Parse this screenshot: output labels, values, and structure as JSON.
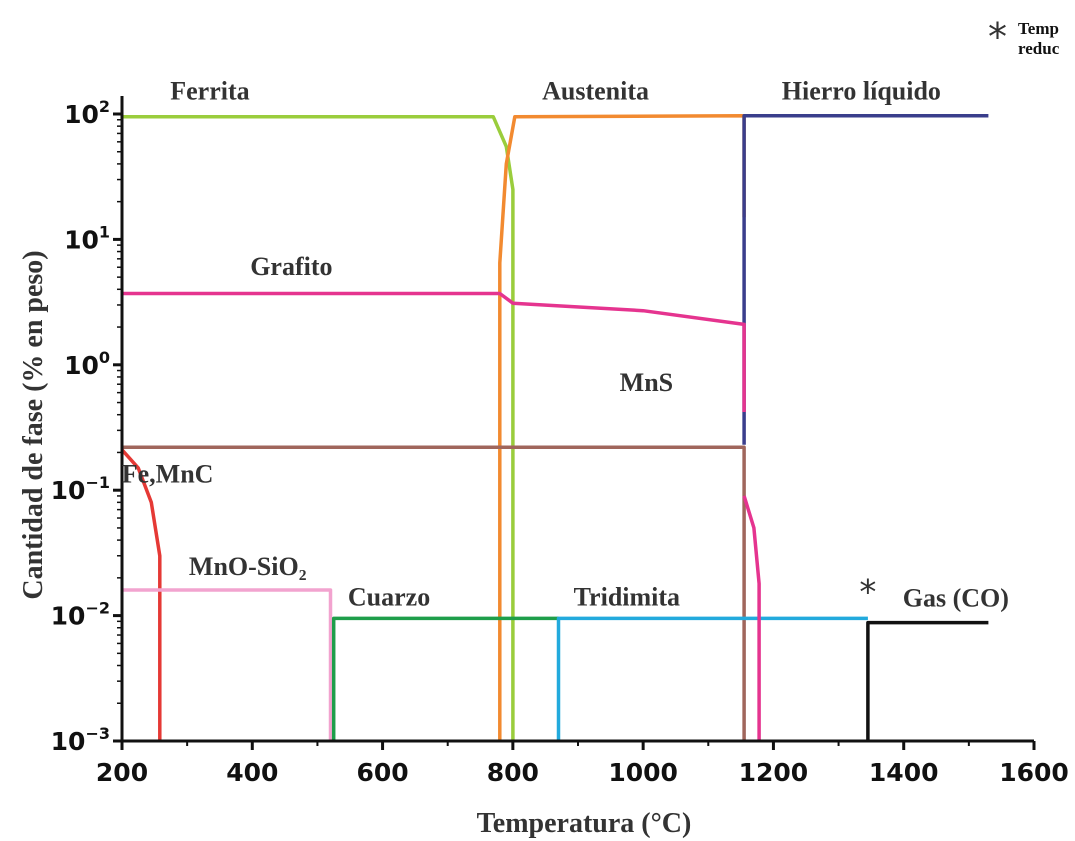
{
  "chart_data": {
    "type": "line",
    "title": "",
    "xlabel": "Temperatura (°C)",
    "ylabel": "Cantidad de fase  (% en peso)",
    "x_scale": "linear",
    "y_scale": "log",
    "xlim": [
      200,
      1600
    ],
    "ylim": [
      0.001,
      100
    ],
    "xticks": [
      "200",
      "400",
      "600",
      "800",
      "1000",
      "1200",
      "1400",
      "1600"
    ],
    "yticks": [
      {
        "base": "10",
        "exp": "2",
        "value": 100
      },
      {
        "base": "10",
        "exp": "1",
        "value": 10
      },
      {
        "base": "10",
        "exp": "0",
        "value": 1
      },
      {
        "base": "10",
        "exp": "−1",
        "value": 0.1
      },
      {
        "base": "10",
        "exp": "−2",
        "value": 0.01
      },
      {
        "base": "10",
        "exp": "−3",
        "value": 0.001
      }
    ],
    "grid": false,
    "note": {
      "symbol": "*",
      "text_lines": [
        "Temp",
        "reduc"
      ]
    },
    "series": [
      {
        "name": "Ferrita",
        "color": "#9ACD3C",
        "points": [
          [
            200,
            95
          ],
          [
            770,
            95
          ],
          [
            790,
            55
          ],
          [
            800,
            25
          ],
          [
            800,
            0.001
          ]
        ]
      },
      {
        "name": "Austenita",
        "color": "#F28A30",
        "points": [
          [
            780,
            0.001
          ],
          [
            780,
            6.5
          ],
          [
            790,
            40
          ],
          [
            803,
            95
          ],
          [
            1155,
            97
          ],
          [
            1155,
            15
          ]
        ]
      },
      {
        "name": "Hierro líquido",
        "color": "#3A3E8C",
        "points": [
          [
            1155,
            0.23
          ],
          [
            1155,
            15
          ],
          [
            1155,
            97
          ],
          [
            1530,
            97
          ]
        ]
      },
      {
        "name": "Grafito",
        "color": "#E5348F",
        "points": [
          [
            200,
            3.7
          ],
          [
            780,
            3.7
          ],
          [
            800,
            3.1
          ],
          [
            1000,
            2.7
          ],
          [
            1155,
            2.1
          ],
          [
            1155,
            0.42
          ]
        ]
      },
      {
        "name": "MnS",
        "color": "#A0665C",
        "points": [
          [
            200,
            0.22
          ],
          [
            1155,
            0.22
          ],
          [
            1155,
            0.001
          ]
        ]
      },
      {
        "name": "Fe,MnC",
        "color": "#E53935",
        "points": [
          [
            200,
            0.21
          ],
          [
            225,
            0.15
          ],
          [
            245,
            0.08
          ],
          [
            258,
            0.03
          ],
          [
            258,
            0.001
          ]
        ]
      },
      {
        "name": "MnO-SiO₂",
        "color": "#F2A3CF",
        "points": [
          [
            200,
            0.016
          ],
          [
            520,
            0.016
          ],
          [
            520,
            0.001
          ]
        ]
      },
      {
        "name": "Cuarzo",
        "color": "#1E9E4A",
        "points": [
          [
            525,
            0.001
          ],
          [
            525,
            0.0095
          ],
          [
            870,
            0.0095
          ]
        ]
      },
      {
        "name": "Tridimita",
        "color": "#22AADD",
        "points": [
          [
            870,
            0.001
          ],
          [
            870,
            0.0095
          ],
          [
            1345,
            0.0095
          ]
        ]
      },
      {
        "name": "Gas (CO)",
        "color": "#111111",
        "points": [
          [
            1345,
            0.001
          ],
          [
            1345,
            0.0088
          ],
          [
            1530,
            0.0088
          ]
        ]
      },
      {
        "name": "",
        "color": "#E5348F",
        "points": [
          [
            1155,
            0.09
          ],
          [
            1170,
            0.05
          ],
          [
            1178,
            0.018
          ],
          [
            1178,
            0.001
          ]
        ]
      }
    ],
    "labels": [
      {
        "text": "Ferrita",
        "x": 335,
        "y": 130
      },
      {
        "text": "Austenita",
        "x": 927,
        "y": 130
      },
      {
        "text": "Hierro líquido",
        "x": 1335,
        "y": 130
      },
      {
        "text": "Grafito",
        "x": 460,
        "y": 5.2
      },
      {
        "text": "MnS",
        "x": 1005,
        "y": 0.62
      },
      {
        "text": "Fe,MnC",
        "x": 270,
        "y": 0.115
      },
      {
        "text": "MnO-SiO₂",
        "x": 393,
        "y": 0.021
      },
      {
        "text": "Cuarzo",
        "x": 610,
        "y": 0.012
      },
      {
        "text": "Tridimita",
        "x": 975,
        "y": 0.012
      },
      {
        "text": "*",
        "x": 1345,
        "y": 0.0125
      },
      {
        "text": "Gas (CO)",
        "x": 1480,
        "y": 0.0118
      }
    ]
  }
}
